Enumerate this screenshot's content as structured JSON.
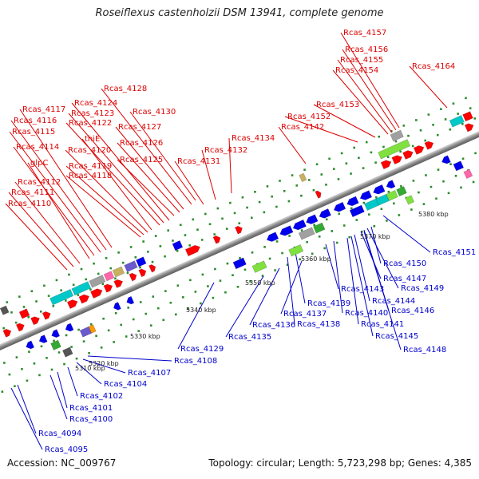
{
  "title": "Roseiflexus castenholzii DSM 13941, complete genome",
  "footer": {
    "accession": "Accession: NC_009767",
    "summary": "Topology: circular; Length: 5,723,298 bp; Genes: 4,385"
  },
  "colors": {
    "forward_label": "#dd0000",
    "reverse_label": "#0000cc",
    "backbone": "#999999"
  },
  "kbp_ticks": [
    "5310 kbp",
    "5320 kbp",
    "5330 kbp",
    "5340 kbp",
    "5350 kbp",
    "5360 kbp",
    "5370 kbp",
    "5380 kbp"
  ],
  "forward_labels": [
    "Rcas_4157",
    "Rcas_4156",
    "Rcas_4155",
    "Rcas_4154",
    "Rcas_4164",
    "Rcas_4128",
    "Rcas_4153",
    "Rcas_4124",
    "Rcas_4117",
    "Rcas_4123",
    "Rcas_4130",
    "Rcas_4152",
    "Rcas_4122",
    "Rcas_4116",
    "Rcas_4127",
    "Rcas_4142",
    "Rcas_4115",
    "thiE",
    "Rcas_4134",
    "Rcas_4126",
    "Rcas_4114",
    "Rcas_4120",
    "Rcas_4132",
    "Rcas_4125",
    "Rcas_4131",
    "glpC",
    "Rcas_4119",
    "Rcas_4118",
    "Rcas_4112",
    "Rcas_4111",
    "Rcas_4110"
  ],
  "reverse_labels": [
    "Rcas_4151",
    "Rcas_4150",
    "Rcas_4147",
    "Rcas_4149",
    "Rcas_4143",
    "Rcas_4144",
    "Rcas_4139",
    "Rcas_4146",
    "Rcas_4137",
    "Rcas_4140",
    "Rcas_4136",
    "Rcas_4138",
    "Rcas_4141",
    "Rcas_4135",
    "Rcas_4145",
    "Rcas_4148",
    "Rcas_4129",
    "Rcas_4108",
    "Rcas_4107",
    "Rcas_4104",
    "Rcas_4102",
    "Rcas_4101",
    "Rcas_4100",
    "Rcas_4094",
    "Rcas_4095"
  ]
}
